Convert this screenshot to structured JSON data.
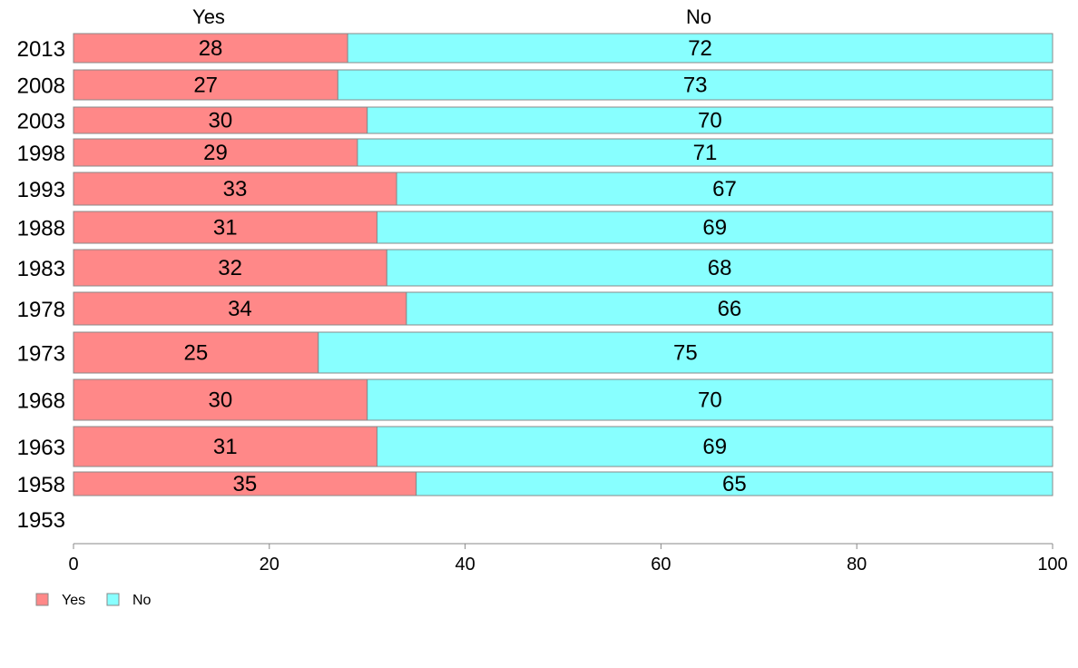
{
  "chart_data": {
    "type": "bar",
    "orientation": "horizontal",
    "stacked": true,
    "categories": [
      "2013",
      "2008",
      "2003",
      "1998",
      "1993",
      "1988",
      "1983",
      "1978",
      "1973",
      "1968",
      "1963",
      "1958",
      "1953"
    ],
    "series": [
      {
        "name": "Yes",
        "color": "#ff8888",
        "values": [
          28,
          27,
          30,
          29,
          33,
          31,
          32,
          34,
          25,
          30,
          31,
          35,
          null
        ]
      },
      {
        "name": "No",
        "color": "#88ffff",
        "values": [
          72,
          73,
          70,
          71,
          67,
          69,
          68,
          66,
          75,
          70,
          69,
          65,
          null
        ]
      }
    ],
    "column_headers": [
      "Yes",
      "No"
    ],
    "xlim": [
      0,
      100
    ],
    "xticks": [
      0,
      20,
      40,
      60,
      80,
      100
    ],
    "grid": false,
    "legend": {
      "position": "bottom-left",
      "entries": [
        "Yes",
        "No"
      ]
    },
    "border_color": "#888888"
  }
}
